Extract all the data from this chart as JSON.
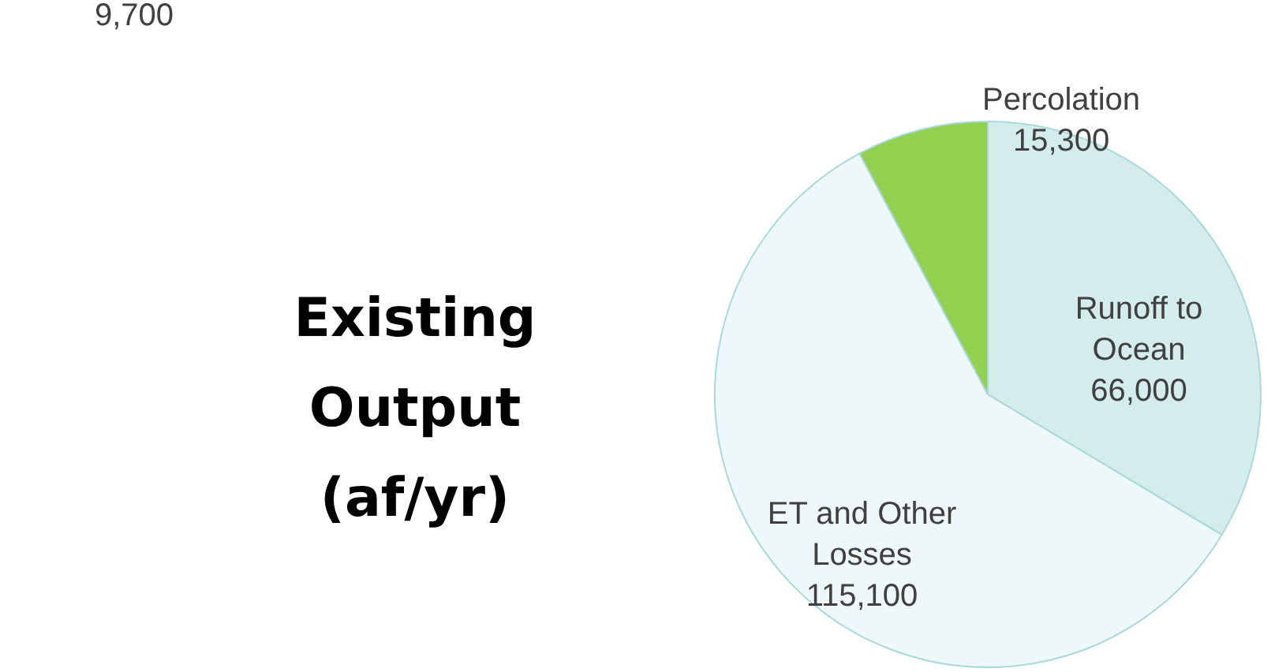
{
  "chart_data": {
    "type": "pie",
    "title": "Existing Output (af/yr)",
    "categories": [
      "Runoff to Ocean",
      "ET and Other Losses",
      "Percolation"
    ],
    "values": [
      66000,
      115100,
      15300
    ],
    "colors": [
      "#d5ecec",
      "#eef7f9",
      "#92d050"
    ],
    "value_labels": [
      "66,000",
      "115,100",
      "15,300"
    ],
    "annotations": [
      "9,700"
    ]
  }
}
